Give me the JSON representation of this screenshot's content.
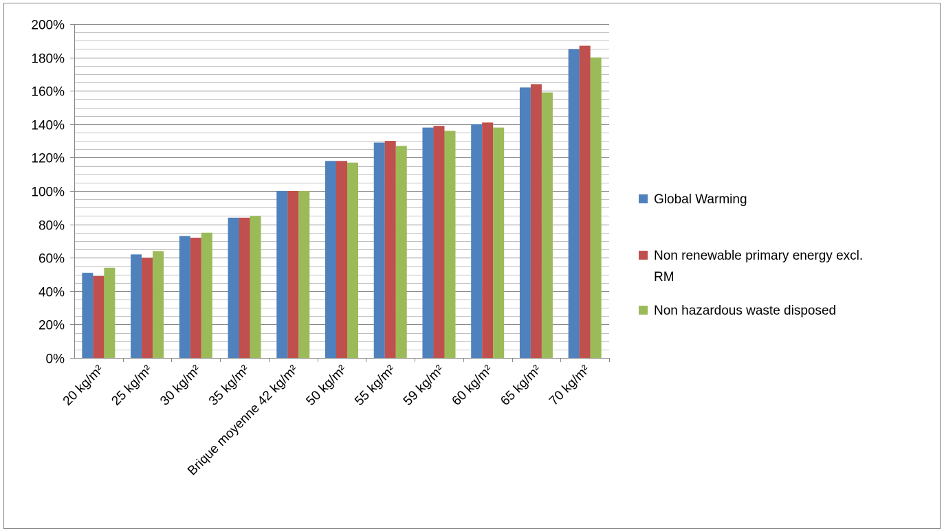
{
  "chart_data": {
    "type": "bar",
    "categories": [
      "20 kg/m²",
      "25 kg/m²",
      "30 kg/m²",
      "35 kg/m²",
      "Brique moyenne 42 kg/m²",
      "50 kg/m²",
      "55 kg/m²",
      "59 kg/m²",
      "60 kg/m²",
      "65 kg/m²",
      "70 kg/m²"
    ],
    "series": [
      {
        "name": "Global Warming",
        "color": "#4f81bd",
        "values": [
          51,
          62,
          73,
          84,
          100,
          118,
          129,
          138,
          140,
          162,
          185
        ]
      },
      {
        "name": "Non renewable primary energy excl. RM",
        "color": "#c0504d",
        "values": [
          49,
          60,
          72,
          84,
          100,
          118,
          130,
          139,
          141,
          164,
          187
        ]
      },
      {
        "name": "Non hazardous waste disposed",
        "color": "#9bbb59",
        "values": [
          54,
          64,
          75,
          85,
          100,
          117,
          127,
          136,
          138,
          159,
          180
        ]
      }
    ],
    "y_ticks": [
      "0%",
      "20%",
      "40%",
      "60%",
      "80%",
      "100%",
      "120%",
      "140%",
      "160%",
      "180%",
      "200%"
    ],
    "ylim": [
      0,
      200
    ],
    "y_unit": "%",
    "minor_gridline_step": 5,
    "grid": true,
    "legend_position": "right",
    "legend_lines": [
      [
        "Global Warming"
      ],
      [
        "Non renewable primary energy excl.",
        "RM"
      ],
      [
        "Non hazardous waste disposed"
      ]
    ],
    "title": "",
    "xlabel": "",
    "ylabel": ""
  }
}
